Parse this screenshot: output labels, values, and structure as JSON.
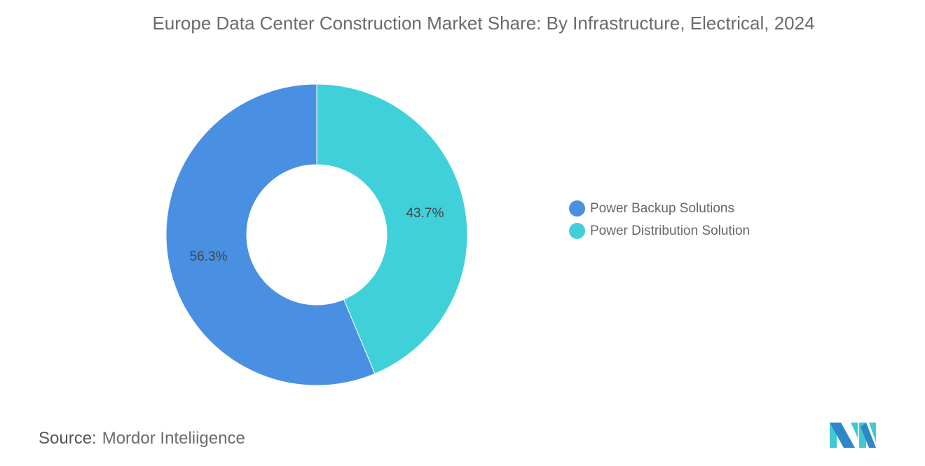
{
  "chart_data": {
    "type": "pie",
    "donut": true,
    "title": "Europe Data Center Construction Market Share: By Infrastructure, Electrical, 2024",
    "categories": [
      "Power Backup Solutions",
      "Power Distribution Solution"
    ],
    "values": [
      56.3,
      43.7
    ],
    "labels": [
      "56.3%",
      "43.7%"
    ],
    "colors": [
      "#4a90e2",
      "#40d0da"
    ],
    "legend_position": "right"
  },
  "source": {
    "label": "Source:",
    "text": "Mordor Inteliigence"
  },
  "logo": {
    "text": "Mordor Intelligence",
    "colors": [
      "#2f86c8",
      "#40c9d3"
    ]
  }
}
